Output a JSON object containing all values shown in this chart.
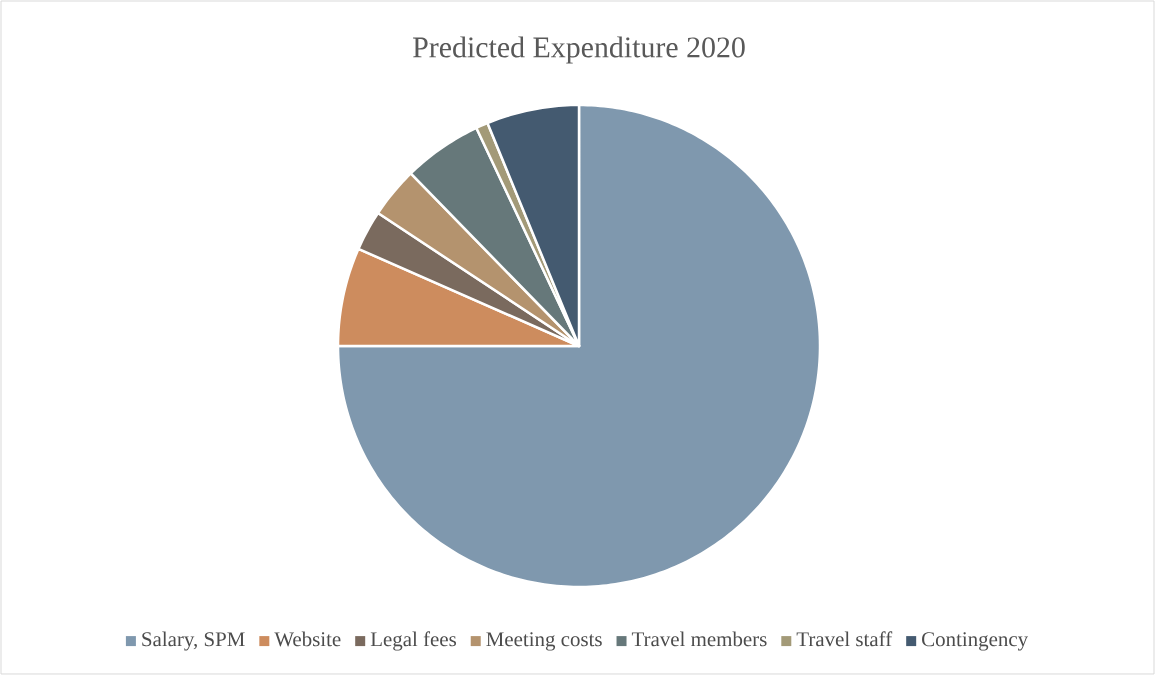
{
  "chart_data": {
    "type": "pie",
    "title": "Predicted Expenditure 2020",
    "categories": [
      "Salary, SPM",
      "Website",
      "Legal fees",
      "Meeting costs",
      "Travel members",
      "Travel staff",
      "Contingency"
    ],
    "values": [
      75,
      6.6,
      2.7,
      3.4,
      5.3,
      0.8,
      6.2
    ],
    "colors": [
      "#7f98ae",
      "#cd8c5e",
      "#7a6a5e",
      "#b4936e",
      "#66787a",
      "#a39a78",
      "#445a70"
    ],
    "legend": "bottom"
  }
}
